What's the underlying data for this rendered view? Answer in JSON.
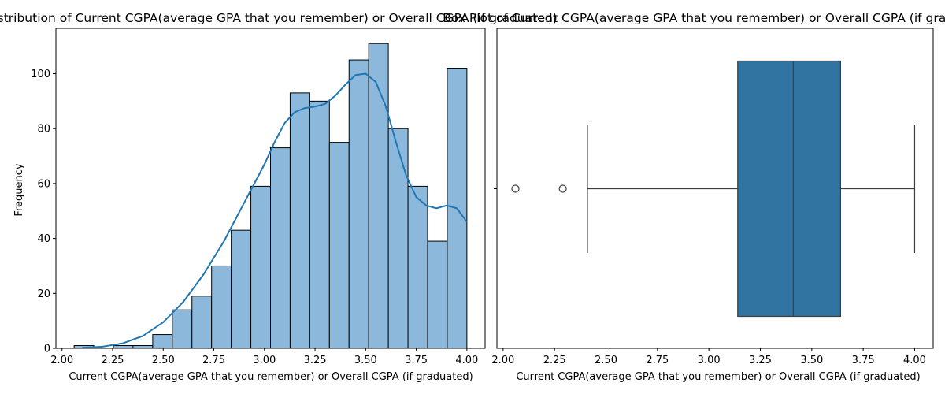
{
  "chart_data": [
    {
      "type": "histogram",
      "title": "Distribution of Current CGPA(average GPA that you remember) or Overall CGPA (if graduated)",
      "xlabel": "Current CGPA(average GPA that you remember) or Overall CGPA (if graduated)",
      "ylabel": "Frequency",
      "xlim": [
        1.97,
        4.09
      ],
      "ylim": [
        0,
        116.5
      ],
      "x_ticks": [
        "2.00",
        "2.25",
        "2.50",
        "2.75",
        "3.00",
        "3.25",
        "3.50",
        "3.75",
        "4.00"
      ],
      "x_tick_values": [
        2.0,
        2.25,
        2.5,
        2.75,
        3.0,
        3.25,
        3.5,
        3.75,
        4.0
      ],
      "y_ticks": [
        "0",
        "20",
        "40",
        "60",
        "80",
        "100"
      ],
      "y_tick_values": [
        0,
        20,
        40,
        60,
        80,
        100
      ],
      "bin_edges": [
        2.06,
        2.157,
        2.254,
        2.351,
        2.448,
        2.545,
        2.642,
        2.739,
        2.836,
        2.933,
        3.03,
        3.127,
        3.224,
        3.321,
        3.418,
        3.515,
        3.612,
        3.709,
        3.806,
        3.903,
        4.0
      ],
      "counts": [
        1,
        0,
        1,
        1,
        5,
        14,
        19,
        30,
        43,
        59,
        73,
        93,
        90,
        75,
        105,
        111,
        80,
        59,
        39,
        102
      ],
      "kde": {
        "x": [
          2.1,
          2.2,
          2.3,
          2.4,
          2.5,
          2.6,
          2.7,
          2.8,
          2.9,
          3.0,
          3.05,
          3.1,
          3.15,
          3.2,
          3.25,
          3.3,
          3.35,
          3.4,
          3.45,
          3.5,
          3.55,
          3.6,
          3.65,
          3.7,
          3.75,
          3.8,
          3.85,
          3.9,
          3.95,
          4.0
        ],
        "y": [
          0.2,
          0.6,
          1.8,
          4.5,
          9.5,
          17,
          27,
          39,
          53,
          67,
          75,
          82,
          86,
          87.5,
          88,
          89,
          92,
          96,
          99.5,
          100,
          97,
          88,
          75,
          63,
          55,
          52,
          51,
          52,
          51,
          46
        ]
      },
      "color": "#1f77b4",
      "bar_fill": "#8cb9db"
    },
    {
      "type": "box",
      "title": "Box Plot of Current CGPA(average GPA that you remember) or Overall CGPA (if graduated)",
      "xlabel": "Current CGPA(average GPA that you remember) or Overall CGPA (if graduated)",
      "xlim": [
        1.97,
        4.09
      ],
      "x_ticks": [
        "2.00",
        "2.25",
        "2.50",
        "2.75",
        "3.00",
        "3.25",
        "3.50",
        "3.75",
        "4.00"
      ],
      "x_tick_values": [
        2.0,
        2.25,
        2.5,
        2.75,
        3.0,
        3.25,
        3.5,
        3.75,
        4.0
      ],
      "whisker_low": 2.41,
      "q1": 3.14,
      "median": 3.41,
      "q3": 3.64,
      "whisker_high": 4.0,
      "outliers": [
        2.06,
        2.29
      ],
      "color": "#3274a1"
    }
  ]
}
